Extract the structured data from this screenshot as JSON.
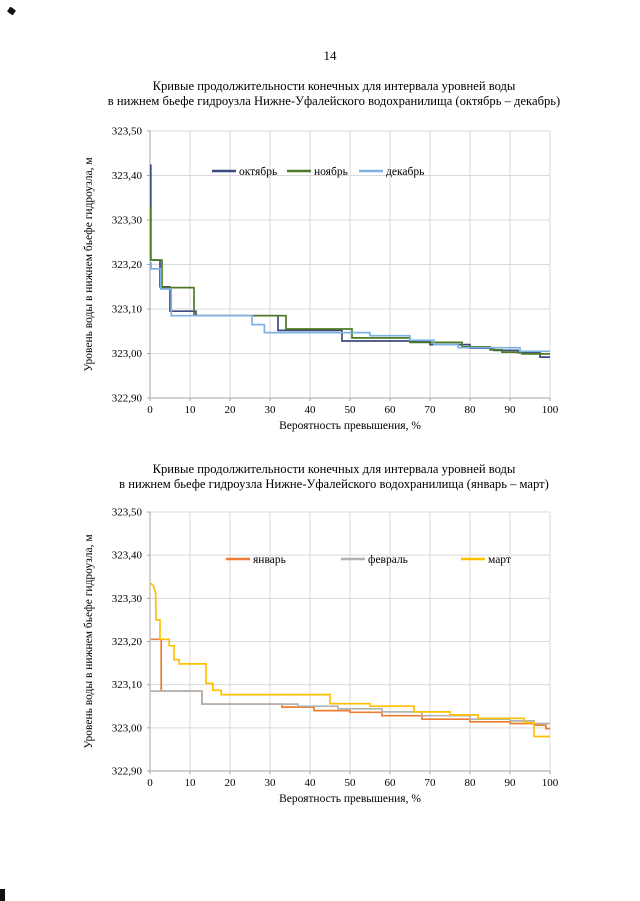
{
  "page": {
    "number": "14"
  },
  "chart_data": [
    {
      "type": "line",
      "title": "Кривые продолжительности конечных для интервала уровней воды в нижнем бьефе гидроузла Нижне-Уфалейского водохранилища (октябрь – декабрь)",
      "title_lines": [
        "Кривые продолжительности конечных для интервала уровней воды",
        "в нижнем бьефе гидроузла Нижне-Уфалейского водохранилища (октябрь – декабрь)"
      ],
      "xlabel": "Вероятность превышения, %",
      "ylabel": "Уровень воды в нижнем бьефе гидроузла, м",
      "xlim": [
        0,
        100
      ],
      "ylim": [
        322.9,
        323.5
      ],
      "x_ticks": [
        0,
        10,
        20,
        30,
        40,
        50,
        60,
        70,
        80,
        90,
        100
      ],
      "x_tick_labels": [
        "0",
        "10",
        "20",
        "30",
        "40",
        "50",
        "60",
        "70",
        "80",
        "90",
        "100"
      ],
      "y_ticks": [
        323.5,
        323.4,
        323.3,
        323.2,
        323.1,
        323.0,
        322.9
      ],
      "y_tick_labels": [
        "323,50",
        "323,40",
        "323,30",
        "323,20",
        "323,10",
        "323,00",
        "322,90"
      ],
      "grid": true,
      "legend_position": "top-inside",
      "series": [
        {
          "name": "октябрь",
          "color": "#3D4C7E",
          "points": [
            [
              0.2,
              323.425
            ],
            [
              0.2,
              323.21
            ],
            [
              2.5,
              323.21
            ],
            [
              2.5,
              323.15
            ],
            [
              5,
              323.15
            ],
            [
              5,
              323.095
            ],
            [
              11.5,
              323.095
            ],
            [
              11.5,
              323.085
            ],
            [
              32,
              323.085
            ],
            [
              32,
              323.052
            ],
            [
              48,
              323.052
            ],
            [
              48,
              323.028
            ],
            [
              70,
              323.028
            ],
            [
              70,
              323.02
            ],
            [
              80,
              323.02
            ],
            [
              80,
              323.012
            ],
            [
              86,
              323.012
            ],
            [
              86,
              323.007
            ],
            [
              92,
              323.007
            ],
            [
              92,
              323.002
            ],
            [
              97.5,
              323.002
            ],
            [
              97.5,
              322.992
            ],
            [
              100,
              322.992
            ]
          ]
        },
        {
          "name": "ноябрь",
          "color": "#4E7A28",
          "points": [
            [
              0.2,
              323.33
            ],
            [
              0.2,
              323.21
            ],
            [
              3,
              323.21
            ],
            [
              3,
              323.148
            ],
            [
              11,
              323.148
            ],
            [
              11,
              323.085
            ],
            [
              34,
              323.085
            ],
            [
              34,
              323.055
            ],
            [
              50.5,
              323.055
            ],
            [
              50.5,
              323.035
            ],
            [
              65,
              323.035
            ],
            [
              65,
              323.025
            ],
            [
              78,
              323.025
            ],
            [
              78,
              323.015
            ],
            [
              85,
              323.015
            ],
            [
              85,
              323.008
            ],
            [
              88,
              323.008
            ],
            [
              88,
              323.003
            ],
            [
              93,
              323.003
            ],
            [
              93,
              322.999
            ],
            [
              100,
              322.999
            ]
          ]
        },
        {
          "name": "декабрь",
          "color": "#7EB2E2",
          "points": [
            [
              0.3,
              323.205
            ],
            [
              0.3,
              323.19
            ],
            [
              2.7,
              323.19
            ],
            [
              2.7,
              323.145
            ],
            [
              5.3,
              323.145
            ],
            [
              5.3,
              323.085
            ],
            [
              25.5,
              323.085
            ],
            [
              25.5,
              323.065
            ],
            [
              28.6,
              323.065
            ],
            [
              28.6,
              323.047
            ],
            [
              55,
              323.047
            ],
            [
              55,
              323.04
            ],
            [
              65,
              323.04
            ],
            [
              65,
              323.03
            ],
            [
              71,
              323.03
            ],
            [
              71,
              323.02
            ],
            [
              77,
              323.02
            ],
            [
              77,
              323.013
            ],
            [
              92.5,
              323.013
            ],
            [
              92.5,
              323.005
            ],
            [
              100,
              323.005
            ]
          ]
        }
      ]
    },
    {
      "type": "line",
      "title": "Кривые продолжительности конечных для интервала уровней воды в нижнем бьефе гидроузла Нижне-Уфалейского водохранилища (январь – март)",
      "title_lines": [
        "Кривые продолжительности конечных для интервала уровней воды",
        "в нижнем бьефе гидроузла Нижне-Уфалейского водохранилища (январь – март)"
      ],
      "xlabel": "Вероятность превышения, %",
      "ylabel": "Уровень воды в нижнем бьефе гидроузла, м",
      "xlim": [
        0,
        100
      ],
      "ylim": [
        322.9,
        323.5
      ],
      "x_ticks": [
        0,
        10,
        20,
        30,
        40,
        50,
        60,
        70,
        80,
        90,
        100
      ],
      "x_tick_labels": [
        "0",
        "10",
        "20",
        "30",
        "40",
        "50",
        "60",
        "70",
        "80",
        "90",
        "100"
      ],
      "y_ticks": [
        323.5,
        323.4,
        323.3,
        323.2,
        323.1,
        323.0,
        322.9
      ],
      "y_tick_labels": [
        "323,50",
        "323,40",
        "323,30",
        "323,20",
        "323,10",
        "323,00",
        "322,90"
      ],
      "grid": true,
      "legend_position": "top-inside",
      "series": [
        {
          "name": "январь",
          "color": "#ED7D31",
          "points": [
            [
              0.2,
              323.205
            ],
            [
              2.8,
              323.205
            ],
            [
              2.8,
              323.085
            ],
            [
              13,
              323.085
            ],
            [
              13,
              323.055
            ],
            [
              33,
              323.055
            ],
            [
              33,
              323.048
            ],
            [
              41,
              323.048
            ],
            [
              41,
              323.04
            ],
            [
              50,
              323.04
            ],
            [
              50,
              323.036
            ],
            [
              58,
              323.036
            ],
            [
              58,
              323.028
            ],
            [
              68,
              323.028
            ],
            [
              68,
              323.02
            ],
            [
              80,
              323.02
            ],
            [
              80,
              323.014
            ],
            [
              90,
              323.014
            ],
            [
              90,
              323.01
            ],
            [
              96,
              323.01
            ],
            [
              96,
              323.006
            ],
            [
              99,
              323.006
            ],
            [
              99,
              322.998
            ],
            [
              100,
              322.998
            ]
          ]
        },
        {
          "name": "февраль",
          "color": "#B3B3B3",
          "points": [
            [
              0.2,
              323.085
            ],
            [
              13,
              323.085
            ],
            [
              13,
              323.055
            ],
            [
              37,
              323.055
            ],
            [
              37,
              323.05
            ],
            [
              47,
              323.05
            ],
            [
              47,
              323.044
            ],
            [
              58,
              323.044
            ],
            [
              58,
              323.037
            ],
            [
              68,
              323.037
            ],
            [
              68,
              323.028
            ],
            [
              80,
              323.028
            ],
            [
              80,
              323.02
            ],
            [
              90,
              323.02
            ],
            [
              90,
              323.016
            ],
            [
              96,
              323.016
            ],
            [
              96,
              323.01
            ],
            [
              100,
              323.01
            ]
          ]
        },
        {
          "name": "март",
          "color": "#FFC000",
          "points": [
            [
              0.2,
              323.335
            ],
            [
              0.9,
              323.328
            ],
            [
              1.4,
              323.312
            ],
            [
              1.5,
              323.25
            ],
            [
              2.5,
              323.25
            ],
            [
              2.5,
              323.205
            ],
            [
              4.8,
              323.205
            ],
            [
              4.8,
              323.19
            ],
            [
              6,
              323.19
            ],
            [
              6,
              323.158
            ],
            [
              7.3,
              323.158
            ],
            [
              7.3,
              323.148
            ],
            [
              14,
              323.148
            ],
            [
              14,
              323.103
            ],
            [
              15.7,
              323.103
            ],
            [
              15.7,
              323.087
            ],
            [
              17.8,
              323.087
            ],
            [
              17.8,
              323.077
            ],
            [
              45,
              323.077
            ],
            [
              45,
              323.056
            ],
            [
              55,
              323.056
            ],
            [
              55,
              323.05
            ],
            [
              66,
              323.05
            ],
            [
              66,
              323.037
            ],
            [
              75,
              323.037
            ],
            [
              75,
              323.03
            ],
            [
              82,
              323.03
            ],
            [
              82,
              323.022
            ],
            [
              93.5,
              323.022
            ],
            [
              93.5,
              323.012
            ],
            [
              96,
              323.012
            ],
            [
              96,
              322.98
            ],
            [
              100,
              322.98
            ]
          ]
        }
      ]
    }
  ]
}
